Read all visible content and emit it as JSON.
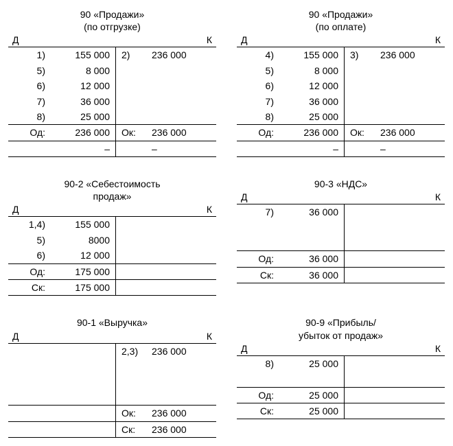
{
  "accounts": [
    {
      "title_lines": [
        "90 «Продажи»",
        "(по отгрузке)"
      ],
      "d": "Д",
      "k": "К",
      "rows": [
        {
          "di": "1)",
          "dv": "155 000",
          "ki": "2)",
          "kv": "236 000"
        },
        {
          "di": "5)",
          "dv": "8 000",
          "ki": "",
          "kv": ""
        },
        {
          "di": "6)",
          "dv": "12 000",
          "ki": "",
          "kv": ""
        },
        {
          "di": "7)",
          "dv": "36 000",
          "ki": "",
          "kv": ""
        },
        {
          "di": "8)",
          "dv": "25 000",
          "ki": "",
          "kv": ""
        }
      ],
      "totals": [
        {
          "di": "Од:",
          "dv": "236 000",
          "ki": "Ок:",
          "kv": "236 000"
        }
      ],
      "footer": [
        {
          "di": "",
          "dv": "–",
          "ki": "",
          "kv": "–"
        }
      ]
    },
    {
      "title_lines": [
        "90 «Продажи»",
        "(по оплате)"
      ],
      "d": "Д",
      "k": "К",
      "rows": [
        {
          "di": "4)",
          "dv": "155 000",
          "ki": "3)",
          "kv": "236 000"
        },
        {
          "di": "5)",
          "dv": "8 000",
          "ki": "",
          "kv": ""
        },
        {
          "di": "6)",
          "dv": "12 000",
          "ki": "",
          "kv": ""
        },
        {
          "di": "7)",
          "dv": "36 000",
          "ki": "",
          "kv": ""
        },
        {
          "di": "8)",
          "dv": "25 000",
          "ki": "",
          "kv": ""
        }
      ],
      "totals": [
        {
          "di": "Од:",
          "dv": "236 000",
          "ki": "Ок:",
          "kv": "236 000"
        }
      ],
      "footer": [
        {
          "di": "",
          "dv": "–",
          "ki": "",
          "kv": "–"
        }
      ]
    },
    {
      "title_lines": [
        "90-2 «Себестоимость",
        "продаж»"
      ],
      "d": "Д",
      "k": "К",
      "rows": [
        {
          "di": "1,4)",
          "dv": "155 000",
          "ki": "",
          "kv": ""
        },
        {
          "di": "5)",
          "dv": "8000",
          "ki": "",
          "kv": ""
        },
        {
          "di": "6)",
          "dv": "12 000",
          "ki": "",
          "kv": ""
        }
      ],
      "totals": [
        {
          "di": "Од:",
          "dv": "175 000",
          "ki": "",
          "kv": ""
        }
      ],
      "footer": [
        {
          "di": "Ск:",
          "dv": "175 000",
          "ki": "",
          "kv": ""
        }
      ]
    },
    {
      "title_lines": [
        "90-3 «НДС»"
      ],
      "d": "Д",
      "k": "К",
      "rows": [
        {
          "di": "7)",
          "dv": "36 000",
          "ki": "",
          "kv": ""
        },
        {
          "di": "",
          "dv": "",
          "ki": "",
          "kv": ""
        },
        {
          "di": "",
          "dv": "",
          "ki": "",
          "kv": ""
        }
      ],
      "totals": [
        {
          "di": "Од:",
          "dv": "36 000",
          "ki": "",
          "kv": ""
        }
      ],
      "footer": [
        {
          "di": "Ск:",
          "dv": "36 000",
          "ki": "",
          "kv": ""
        }
      ]
    },
    {
      "title_lines": [
        "90-1 «Выручка»"
      ],
      "d": "Д",
      "k": "К",
      "rows": [
        {
          "di": "",
          "dv": "",
          "ki": "2,3)",
          "kv": "236 000"
        },
        {
          "di": "",
          "dv": "",
          "ki": "",
          "kv": ""
        },
        {
          "di": "",
          "dv": "",
          "ki": "",
          "kv": ""
        },
        {
          "di": "",
          "dv": "",
          "ki": "",
          "kv": ""
        }
      ],
      "totals": [
        {
          "di": "",
          "dv": "",
          "ki": "Ок:",
          "kv": "236 000"
        }
      ],
      "footer": [
        {
          "di": "",
          "dv": "",
          "ki": "Ск:",
          "kv": "236 000"
        }
      ]
    },
    {
      "title_lines": [
        "90-9 «Прибыль/",
        "убыток от продаж»"
      ],
      "d": "Д",
      "k": "К",
      "rows": [
        {
          "di": "8)",
          "dv": "25 000",
          "ki": "",
          "kv": ""
        },
        {
          "di": "",
          "dv": "",
          "ki": "",
          "kv": ""
        }
      ],
      "totals": [
        {
          "di": "Од:",
          "dv": "25 000",
          "ki": "",
          "kv": ""
        }
      ],
      "footer": [
        {
          "di": "Ск:",
          "dv": "25 000",
          "ki": "",
          "kv": ""
        }
      ]
    }
  ]
}
